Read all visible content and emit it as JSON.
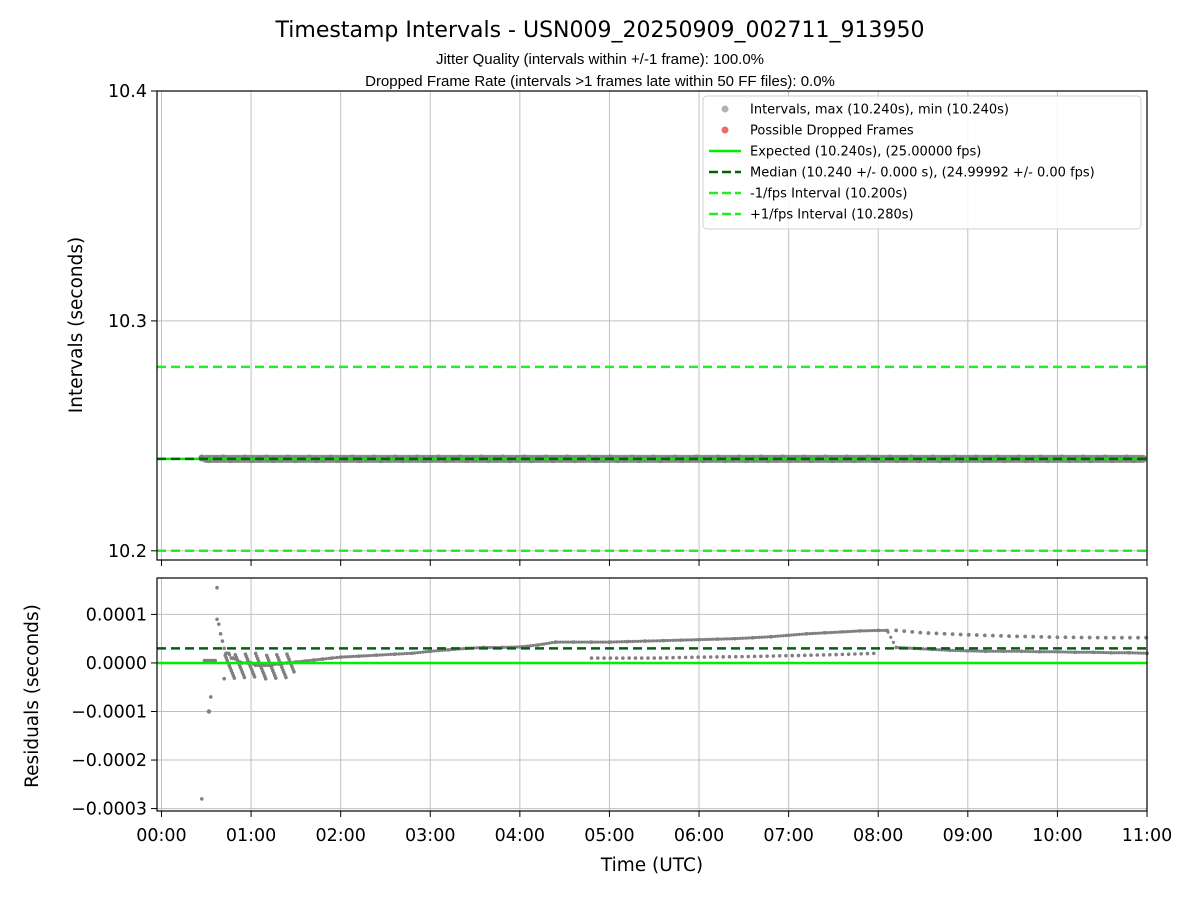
{
  "figure": {
    "title": "Timestamp Intervals - USN009_20250909_002711_913950",
    "subtitle_1": "Jitter Quality (intervals within +/-1 frame): 100.0%",
    "subtitle_2": "Dropped Frame Rate (intervals >1 frames late within 50 FF files): 0.0%"
  },
  "colors": {
    "points": "#808080",
    "dropped": "#f06060",
    "expected": "#00ee00",
    "median": "#006400",
    "fps_band": "#22ee22",
    "grid": "#c0c0c0"
  },
  "chart_data": [
    {
      "type": "scatter",
      "panel": "intervals",
      "ylabel": "Intervals (seconds)",
      "xlabel": "",
      "ylim": [
        10.196,
        10.4
      ],
      "xlim_hours": [
        -0.05,
        11.0
      ],
      "yticks": [
        "10.2",
        "10.3",
        "10.4"
      ],
      "ytick_values": [
        10.2,
        10.3,
        10.4
      ],
      "grid": true,
      "legend_position": "top-right",
      "legend": [
        {
          "key": "intervals",
          "label": "Intervals, max (10.240s), min (10.240s)",
          "kind": "dot"
        },
        {
          "key": "dropped",
          "label": "Possible Dropped Frames",
          "kind": "dot"
        },
        {
          "key": "expected",
          "label": "Expected (10.240s), (25.00000 fps)",
          "kind": "solid"
        },
        {
          "key": "median",
          "label": "Median (10.240 +/- 0.000 s), (24.99992 +/- 0.00 fps)",
          "kind": "dashed"
        },
        {
          "key": "minus",
          "label": "-1/fps Interval (10.200s)",
          "kind": "dashed"
        },
        {
          "key": "plus",
          "label": "+1/fps Interval (10.280s)",
          "kind": "dashed"
        }
      ],
      "lines": {
        "expected": 10.24,
        "median": 10.24,
        "minus_fps": 10.2,
        "plus_fps": 10.28
      },
      "series": [
        {
          "name": "Intervals, max (10.240s), min (10.240s)",
          "x_start_hours": 0.45,
          "x_end_hours": 11.0,
          "y": 10.24
        },
        {
          "name": "Possible Dropped Frames",
          "x": [],
          "y": []
        }
      ]
    },
    {
      "type": "scatter",
      "panel": "residuals",
      "ylabel": "Residuals (seconds)",
      "xlabel": "Time (UTC)",
      "ylim": [
        -0.000305,
        0.000175
      ],
      "xlim_hours": [
        -0.05,
        11.0
      ],
      "yticks": [
        "0.0001",
        "0.0000",
        "−0.0001",
        "−0.0002",
        "−0.0003"
      ],
      "ytick_values": [
        0.0001,
        0.0,
        -0.0001,
        -0.0002,
        -0.0003
      ],
      "xticks": [
        "00:00",
        "01:00",
        "02:00",
        "03:00",
        "04:00",
        "05:00",
        "06:00",
        "07:00",
        "08:00",
        "09:00",
        "10:00",
        "11:00"
      ],
      "xtick_values": [
        0,
        1,
        2,
        3,
        4,
        5,
        6,
        7,
        8,
        9,
        10,
        11
      ],
      "grid": true,
      "lines": {
        "expected": 0.0,
        "median": 3e-05
      },
      "series": [
        {
          "name": "residuals",
          "x": [
            0.45,
            0.48,
            0.5,
            0.52,
            0.55,
            0.58,
            0.6,
            0.62,
            0.64,
            0.66,
            0.68,
            0.7,
            0.72,
            0.75,
            0.78,
            0.8,
            0.85,
            0.9,
            0.95,
            1.0,
            1.05,
            1.1,
            1.15,
            1.2,
            1.25,
            1.3,
            1.35,
            1.4,
            1.45,
            1.5,
            1.6,
            1.7,
            1.8,
            1.9,
            2.0,
            2.2,
            2.4,
            2.6,
            2.8,
            3.0,
            3.2,
            3.4,
            3.6,
            3.8,
            4.0,
            4.2,
            4.4,
            4.6,
            4.8,
            5.0,
            5.2,
            5.4,
            5.6,
            5.8,
            6.0,
            6.2,
            6.4,
            6.6,
            6.8,
            7.0,
            7.2,
            7.4,
            7.6,
            7.8,
            8.0,
            8.1,
            8.2,
            8.4,
            8.6,
            8.8,
            9.0,
            9.2,
            9.4,
            9.6,
            9.8,
            10.0,
            10.2,
            10.4,
            10.6,
            10.8,
            11.0
          ],
          "y": [
            -0.00028,
            5e-06,
            5e-06,
            5e-06,
            5e-06,
            5e-06,
            5e-06,
            9e-05,
            8e-05,
            6e-05,
            4.5e-05,
            3e-05,
            2e-05,
            2e-05,
            1e-05,
            1e-05,
            5e-06,
            0.0,
            0.0,
            0.0,
            -5e-06,
            -5e-06,
            -5e-06,
            -5e-06,
            -3e-06,
            -2e-06,
            -1e-06,
            0.0,
            0.0,
            2e-06,
            4e-06,
            6e-06,
            8e-06,
            1e-05,
            1.2e-05,
            1.4e-05,
            1.6e-05,
            1.8e-05,
            2e-05,
            2.4e-05,
            2.7e-05,
            3e-05,
            3.2e-05,
            3.2e-05,
            3.3e-05,
            3.7e-05,
            4.3e-05,
            4.3e-05,
            4.3e-05,
            4.3e-05,
            4.4e-05,
            4.5e-05,
            4.6e-05,
            4.7e-05,
            4.8e-05,
            4.9e-05,
            5e-05,
            5.2e-05,
            5.4e-05,
            5.7e-05,
            6e-05,
            6.2e-05,
            6.4e-05,
            6.6e-05,
            6.7e-05,
            6.7e-05,
            3.2e-05,
            3e-05,
            2.8e-05,
            2.6e-05,
            2.5e-05,
            2.4e-05,
            2.4e-05,
            2.4e-05,
            2.3e-05,
            2.3e-05,
            2.2e-05,
            2.2e-05,
            2.1e-05,
            2.1e-05,
            2e-05
          ]
        },
        {
          "name": "upper band",
          "x": [
            4.4,
            5.0,
            5.5,
            6.0,
            6.5,
            7.0,
            7.5,
            8.0,
            8.2,
            8.5,
            9.0,
            9.5,
            10.0,
            10.5,
            11.0
          ],
          "y": [
            4.3e-05,
            4.3e-05,
            4.4e-05,
            4.5e-05,
            4.6e-05,
            5.6e-05,
            6.2e-05,
            6.6e-05,
            6.7e-05,
            6.2e-05,
            5.8e-05,
            5.5e-05,
            5.3e-05,
            5.2e-05,
            5.2e-05
          ]
        },
        {
          "name": "lower band",
          "x": [
            4.8,
            5.5,
            6.0,
            6.5,
            7.0,
            7.5,
            8.0
          ],
          "y": [
            1e-05,
            1e-05,
            1.2e-05,
            1.3e-05,
            1.5e-05,
            1.7e-05,
            2e-05
          ]
        }
      ]
    }
  ]
}
